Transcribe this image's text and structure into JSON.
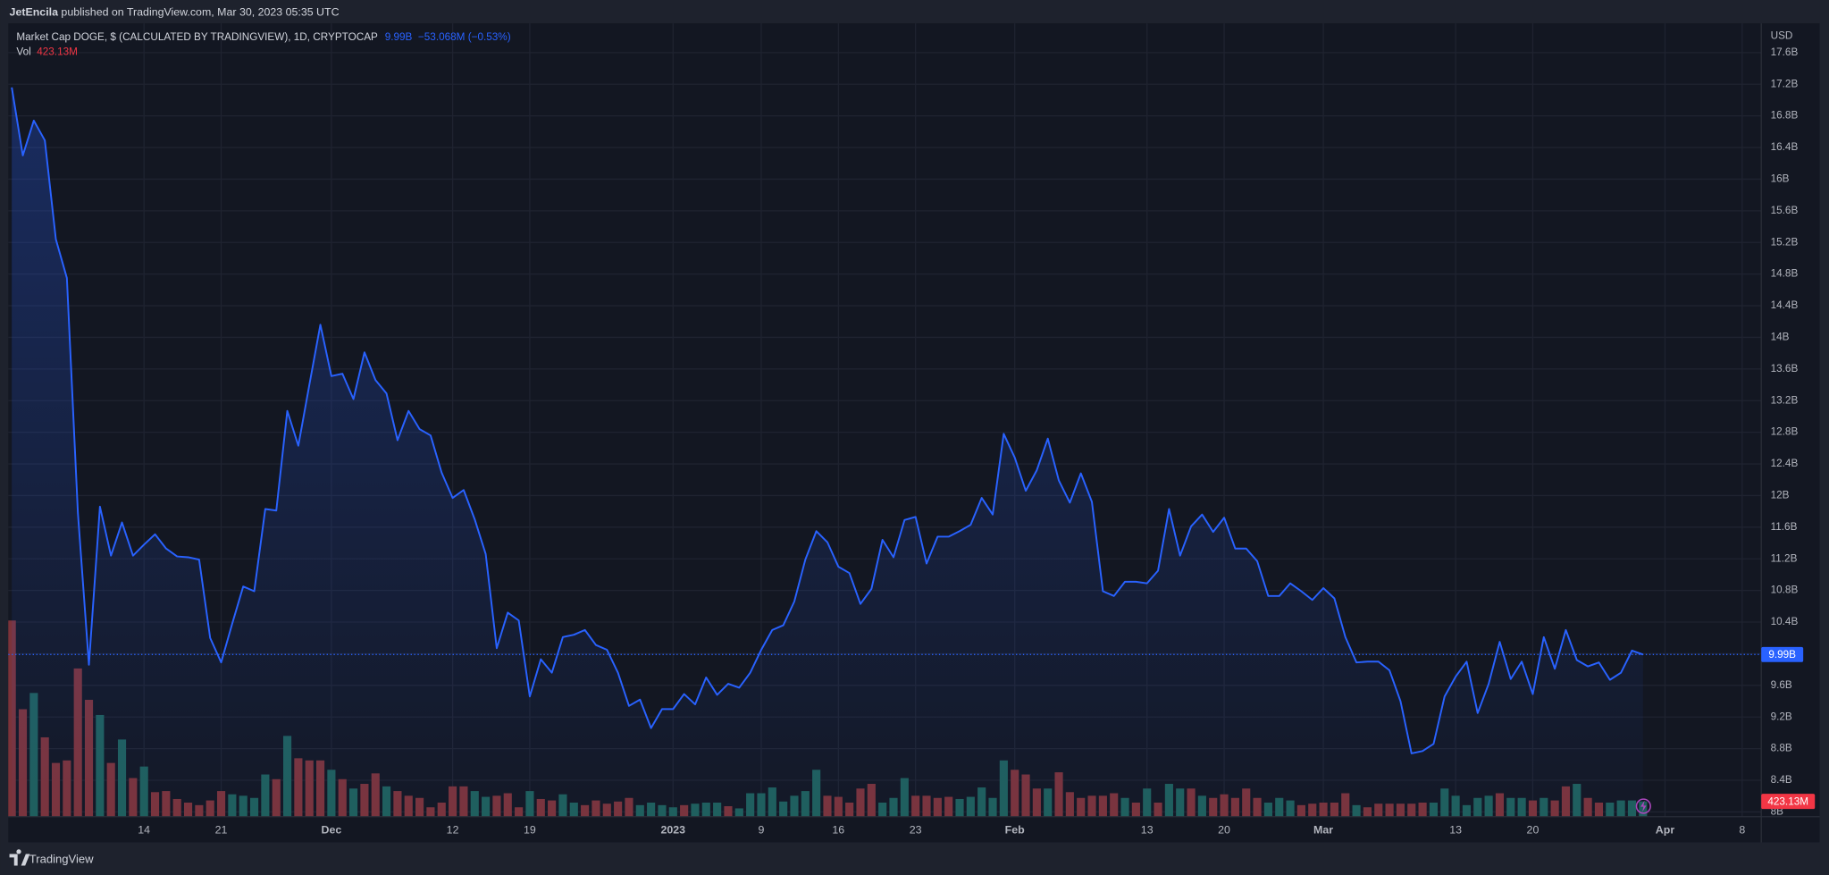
{
  "header": {
    "author": "JetEncila",
    "text": "published on TradingView.com, Mar 30, 2023 05:35 UTC"
  },
  "footer": {
    "brand": "TradingView"
  },
  "chart_data": {
    "type": "line",
    "title": "Market Cap DOGE, $ (CALCULATED BY TRADINGVIEW), 1D, CRYPTOCAP",
    "y_axis_label": "USD",
    "categories": [
      null,
      null,
      null,
      null,
      null,
      null,
      null,
      null,
      null,
      null,
      null,
      null,
      "14",
      null,
      null,
      null,
      null,
      null,
      null,
      "21",
      null,
      null,
      null,
      null,
      null,
      null,
      null,
      null,
      null,
      "Dec",
      null,
      null,
      null,
      null,
      null,
      null,
      null,
      null,
      null,
      null,
      "12",
      null,
      null,
      null,
      null,
      null,
      null,
      "19",
      null,
      null,
      null,
      null,
      null,
      null,
      null,
      null,
      null,
      null,
      null,
      null,
      "2023",
      null,
      null,
      null,
      null,
      null,
      null,
      null,
      "9",
      null,
      null,
      null,
      null,
      null,
      null,
      "16",
      null,
      null,
      null,
      null,
      null,
      null,
      "23",
      null,
      null,
      null,
      null,
      null,
      null,
      null,
      null,
      "Feb",
      null,
      null,
      null,
      null,
      null,
      null,
      null,
      null,
      null,
      null,
      null,
      "13",
      null,
      null,
      null,
      null,
      null,
      null,
      "20",
      null,
      null,
      null,
      null,
      null,
      null,
      null,
      null,
      "Mar",
      null,
      null,
      null,
      null,
      null,
      null,
      null,
      null,
      null,
      null,
      null,
      "13",
      null,
      null,
      null,
      null,
      null,
      null,
      "20",
      null,
      null,
      null,
      null,
      null,
      null,
      null,
      null,
      null,
      null,
      null,
      "Apr",
      null,
      null,
      null,
      null,
      null,
      null,
      "8"
    ],
    "series": [
      {
        "color": "#2962ff",
        "values": [
          17.16,
          16.3,
          16.74,
          16.49,
          15.24,
          14.75,
          11.78,
          9.86,
          11.86,
          11.24,
          11.66,
          11.24,
          11.38,
          11.51,
          11.33,
          11.23,
          11.22,
          11.19,
          10.2,
          9.89,
          10.38,
          10.85,
          10.79,
          11.83,
          11.81,
          13.07,
          12.63,
          13.4,
          14.16,
          13.51,
          13.54,
          13.22,
          13.81,
          13.46,
          13.29,
          12.7,
          13.07,
          12.84,
          12.76,
          12.29,
          11.97,
          12.07,
          11.7,
          11.26,
          10.07,
          10.52,
          10.42,
          9.46,
          9.93,
          9.76,
          10.21,
          10.24,
          10.3,
          10.11,
          10.05,
          9.76,
          9.34,
          9.42,
          9.06,
          9.3,
          9.3,
          9.49,
          9.36,
          9.7,
          9.48,
          9.62,
          9.57,
          9.76,
          10.05,
          10.3,
          10.36,
          10.66,
          11.19,
          11.55,
          11.41,
          11.1,
          11.02,
          10.63,
          10.82,
          11.44,
          11.22,
          11.69,
          11.73,
          11.14,
          11.48,
          11.48,
          11.55,
          11.63,
          11.97,
          11.76,
          12.78,
          12.48,
          12.06,
          12.32,
          12.72,
          12.19,
          11.91,
          12.28,
          11.92,
          10.79,
          10.73,
          10.91,
          10.91,
          10.89,
          11.05,
          11.83,
          11.24,
          11.61,
          11.76,
          11.54,
          11.72,
          11.33,
          11.33,
          11.17,
          10.73,
          10.73,
          10.89,
          10.79,
          10.68,
          10.83,
          10.7,
          10.21,
          9.89,
          9.9,
          9.9,
          9.79,
          9.4,
          8.74,
          8.77,
          8.86,
          9.46,
          9.71,
          9.9,
          9.25,
          9.62,
          10.15,
          9.68,
          9.9,
          9.49,
          10.21,
          9.81,
          10.3,
          9.92,
          9.84,
          9.89,
          9.67,
          9.76,
          10.04,
          9.99,
          null,
          null,
          null,
          null,
          null,
          null,
          null,
          null,
          null
        ],
        "last_label": "9.99B",
        "change_label": "−53.068M (−0.53%)"
      }
    ],
    "volume": {
      "name": "Vol",
      "label_color": "#f23645",
      "ylim": [
        0,
        22000
      ],
      "values": [
        5440,
        2980,
        3430,
        2200,
        1490,
        1560,
        4110,
        3240,
        2820,
        1490,
        2140,
        1070,
        1390,
        680,
        710,
        490,
        390,
        320,
        450,
        710,
        620,
        580,
        520,
        1170,
        1040,
        2240,
        1620,
        1560,
        1560,
        1300,
        1040,
        780,
        910,
        1200,
        840,
        710,
        580,
        520,
        260,
        390,
        840,
        840,
        710,
        550,
        580,
        650,
        260,
        710,
        490,
        450,
        620,
        390,
        320,
        450,
        360,
        420,
        520,
        320,
        390,
        320,
        260,
        320,
        360,
        390,
        390,
        290,
        230,
        650,
        650,
        810,
        420,
        580,
        710,
        1300,
        580,
        550,
        390,
        780,
        910,
        390,
        520,
        1070,
        580,
        580,
        520,
        550,
        490,
        550,
        810,
        520,
        1560,
        1300,
        1170,
        780,
        780,
        1230,
        680,
        520,
        580,
        580,
        650,
        520,
        390,
        780,
        390,
        910,
        780,
        780,
        580,
        520,
        620,
        520,
        780,
        520,
        390,
        520,
        450,
        320,
        360,
        390,
        390,
        650,
        320,
        260,
        360,
        360,
        360,
        360,
        390,
        390,
        780,
        580,
        320,
        520,
        580,
        650,
        520,
        520,
        450,
        520,
        450,
        840,
        910,
        520,
        390,
        390,
        450,
        450,
        423.13,
        null,
        null,
        null,
        null,
        null,
        null,
        null,
        null,
        null
      ],
      "colors": [
        "#7b333a",
        "#7b333a",
        "#1f5f5b",
        "#7b333a",
        "#7b333a",
        "#7b333a",
        "#7b333a",
        "#7b333a",
        "#1f5f5b",
        "#7b333a",
        "#1f5f5b",
        "#7b333a",
        "#1f5f5b",
        "#7b333a",
        "#7b333a",
        "#7b333a",
        "#7b333a",
        "#7b333a",
        "#7b333a",
        "#7b333a",
        "#1f5f5b",
        "#1f5f5b",
        "#1f5f5b",
        "#1f5f5b",
        "#7b333a",
        "#1f5f5b",
        "#7b333a",
        "#7b333a",
        "#7b333a",
        "#1f5f5b",
        "#7b333a",
        "#1f5f5b",
        "#7b333a",
        "#7b333a",
        "#1f5f5b",
        "#7b333a",
        "#7b333a",
        "#7b333a",
        "#7b333a",
        "#7b333a",
        "#7b333a",
        "#7b333a",
        "#1f5f5b",
        "#1f5f5b",
        "#7b333a",
        "#7b333a",
        "#7b333a",
        "#1f5f5b",
        "#7b333a",
        "#7b333a",
        "#1f5f5b",
        "#1f5f5b",
        "#7b333a",
        "#7b333a",
        "#7b333a",
        "#7b333a",
        "#7b333a",
        "#1f5f5b",
        "#1f5f5b",
        "#1f5f5b",
        "#1f5f5b",
        "#7b333a",
        "#1f5f5b",
        "#1f5f5b",
        "#1f5f5b",
        "#7b333a",
        "#1f5f5b",
        "#1f5f5b",
        "#1f5f5b",
        "#1f5f5b",
        "#1f5f5b",
        "#1f5f5b",
        "#1f5f5b",
        "#1f5f5b",
        "#7b333a",
        "#7b333a",
        "#7b333a",
        "#7b333a",
        "#7b333a",
        "#1f5f5b",
        "#1f5f5b",
        "#1f5f5b",
        "#7b333a",
        "#7b333a",
        "#7b333a",
        "#7b333a",
        "#1f5f5b",
        "#1f5f5b",
        "#1f5f5b",
        "#1f5f5b",
        "#1f5f5b",
        "#7b333a",
        "#7b333a",
        "#7b333a",
        "#1f5f5b",
        "#7b333a",
        "#7b333a",
        "#7b333a",
        "#7b333a",
        "#7b333a",
        "#7b333a",
        "#1f5f5b",
        "#7b333a",
        "#1f5f5b",
        "#7b333a",
        "#1f5f5b",
        "#1f5f5b",
        "#7b333a",
        "#1f5f5b",
        "#7b333a",
        "#7b333a",
        "#7b333a",
        "#7b333a",
        "#7b333a",
        "#1f5f5b",
        "#1f5f5b",
        "#1f5f5b",
        "#7b333a",
        "#7b333a",
        "#7b333a",
        "#7b333a",
        "#7b333a",
        "#1f5f5b",
        "#7b333a",
        "#7b333a",
        "#7b333a",
        "#7b333a",
        "#7b333a",
        "#7b333a",
        "#1f5f5b",
        "#1f5f5b",
        "#1f5f5b",
        "#1f5f5b",
        "#1f5f5b",
        "#1f5f5b",
        "#7b333a",
        "#1f5f5b",
        "#1f5f5b",
        "#7b333a",
        "#1f5f5b",
        "#7b333a",
        "#7b333a",
        "#1f5f5b",
        "#7b333a",
        "#7b333a",
        "#1f5f5b",
        "#1f5f5b",
        "#1f5f5b",
        "#1f5f5b",
        null,
        null,
        null,
        null,
        null,
        null,
        null,
        null,
        null
      ],
      "last_label": "423.13M"
    },
    "ylim": [
      7.94,
      17.97
    ],
    "yticks": [
      {
        "value": 8,
        "label": "8B"
      },
      {
        "value": 8.4,
        "label": "8.4B"
      },
      {
        "value": 8.8,
        "label": "8.8B"
      },
      {
        "value": 9.2,
        "label": "9.2B"
      },
      {
        "value": 9.6,
        "label": "9.6B"
      },
      {
        "value": 10,
        "label": "10B"
      },
      {
        "value": 10.4,
        "label": "10.4B"
      },
      {
        "value": 10.8,
        "label": "10.8B"
      },
      {
        "value": 11.2,
        "label": "11.2B"
      },
      {
        "value": 11.6,
        "label": "11.6B"
      },
      {
        "value": 12,
        "label": "12B"
      },
      {
        "value": 12.4,
        "label": "12.4B"
      },
      {
        "value": 12.8,
        "label": "12.8B"
      },
      {
        "value": 13.2,
        "label": "13.2B"
      },
      {
        "value": 13.6,
        "label": "13.6B"
      },
      {
        "value": 14,
        "label": "14B"
      },
      {
        "value": 14.4,
        "label": "14.4B"
      },
      {
        "value": 14.8,
        "label": "14.8B"
      },
      {
        "value": 15.2,
        "label": "15.2B"
      },
      {
        "value": 15.6,
        "label": "15.6B"
      },
      {
        "value": 16,
        "label": "16B"
      },
      {
        "value": 16.4,
        "label": "16.4B"
      },
      {
        "value": 16.8,
        "label": "16.8B"
      },
      {
        "value": 17.2,
        "label": "17.2B"
      },
      {
        "value": 17.6,
        "label": "17.6B"
      }
    ],
    "grid": true
  }
}
